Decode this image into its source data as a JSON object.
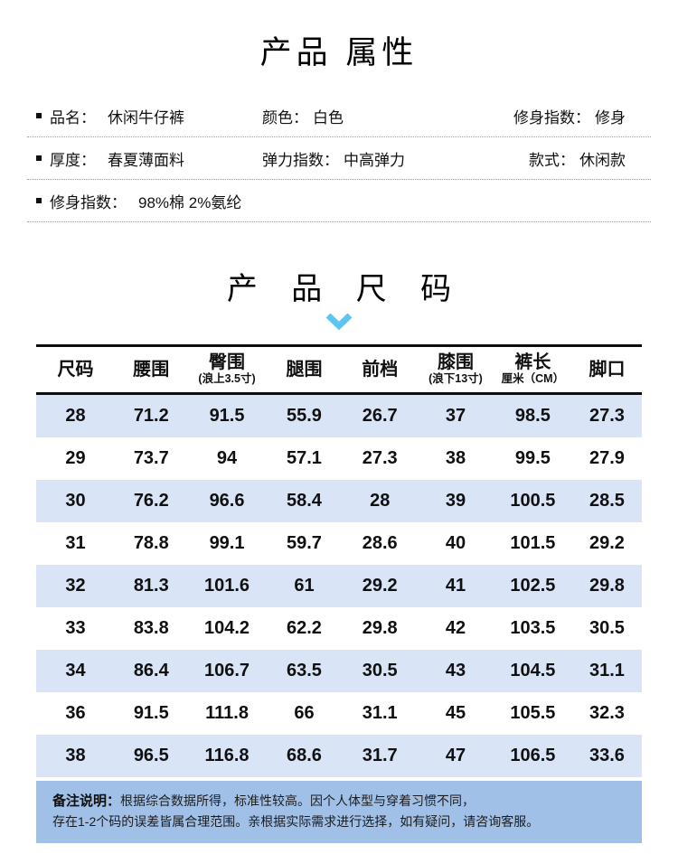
{
  "page": {
    "attributes_title": "产品 属性",
    "size_title": "产 品 尺 码"
  },
  "attributes": {
    "rows": [
      [
        {
          "label": "品名：",
          "value": "休闲牛仔裤",
          "bullet": true
        },
        {
          "label": "颜色：",
          "value": "白色"
        },
        {
          "label": "修身指数：",
          "value": "修身"
        }
      ],
      [
        {
          "label": "厚度：",
          "value": "春夏薄面料",
          "bullet": true
        },
        {
          "label": "弹力指数：",
          "value": "中高弹力"
        },
        {
          "label": "款式：",
          "value": "休闲款"
        }
      ],
      [
        {
          "label": "修身指数：",
          "value": "98%棉 2%氨纶",
          "bullet": true
        }
      ]
    ]
  },
  "size_chart": {
    "columns": [
      {
        "title": "尺码",
        "sub": ""
      },
      {
        "title": "腰围",
        "sub": ""
      },
      {
        "title": "臀围",
        "sub": "(浪上3.5寸)"
      },
      {
        "title": "腿围",
        "sub": ""
      },
      {
        "title": "前档",
        "sub": ""
      },
      {
        "title": "膝围",
        "sub": "(浪下13寸)"
      },
      {
        "title": "裤长",
        "sub": "厘米（CM）"
      },
      {
        "title": "脚口",
        "sub": ""
      }
    ],
    "rows": [
      [
        "28",
        "71.2",
        "91.5",
        "55.9",
        "26.7",
        "37",
        "98.5",
        "27.3"
      ],
      [
        "29",
        "73.7",
        "94",
        "57.1",
        "27.3",
        "38",
        "99.5",
        "27.9"
      ],
      [
        "30",
        "76.2",
        "96.6",
        "58.4",
        "28",
        "39",
        "100.5",
        "28.5"
      ],
      [
        "31",
        "78.8",
        "99.1",
        "59.7",
        "28.6",
        "40",
        "101.5",
        "29.2"
      ],
      [
        "32",
        "81.3",
        "101.6",
        "61",
        "29.2",
        "41",
        "102.5",
        "29.8"
      ],
      [
        "33",
        "83.8",
        "104.2",
        "62.2",
        "29.8",
        "42",
        "103.5",
        "30.5"
      ],
      [
        "34",
        "86.4",
        "106.7",
        "63.5",
        "30.5",
        "43",
        "104.5",
        "31.1"
      ],
      [
        "36",
        "91.5",
        "111.8",
        "66",
        "31.1",
        "45",
        "105.5",
        "32.3"
      ],
      [
        "38",
        "96.5",
        "116.8",
        "68.6",
        "31.7",
        "47",
        "106.5",
        "33.6"
      ]
    ]
  },
  "note": {
    "label": "备注说明：",
    "line1": "根据综合数据所得，标准性较高。因个人体型与穿着习惯不同，",
    "line2": "存在1-2个码的误差皆属合理范围。亲根据实际需求进行选择，如有疑问，请咨询客服。"
  },
  "colors": {
    "row_alt": "#d9e4f7",
    "note_bg": "#a0c0e7",
    "chevron": "#5ec5f0",
    "table_border": "#0d0d0d"
  }
}
